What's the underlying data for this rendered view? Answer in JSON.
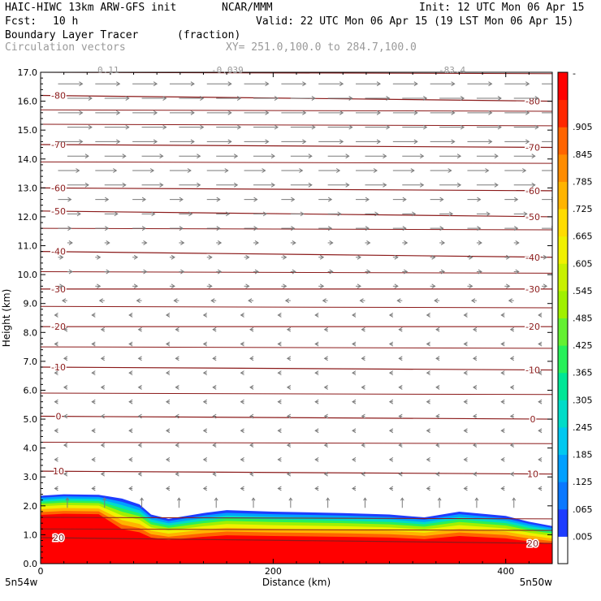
{
  "header": {
    "model": "HAIC-HIWC 13km ARW-GFS init",
    "org": "NCAR/MMM",
    "init": "Init: 12 UTC Mon 06 Apr 15",
    "fcst_label": "Fcst:",
    "fcst_value": "10 h",
    "valid": "Valid: 22 UTC Mon 06 Apr 15 (19 LST Mon 06 Apr 15)",
    "field": "Boundary Layer Tracer",
    "field_units": "(fraction)",
    "vectors": "Circulation vectors",
    "xy": "XY= 251.0,100.0 to 284.7,100.0",
    "vector_labels": [
      "0.11",
      "-0.039",
      "-83.4"
    ]
  },
  "chart_data": {
    "type": "heatmap",
    "title": "Boundary Layer Tracer",
    "xlabel": "Distance (km)",
    "ylabel": "Height (km)",
    "xlim": [
      0,
      440
    ],
    "ylim": [
      0,
      17
    ],
    "x_ticks": [
      0,
      200,
      400
    ],
    "y_ticks": [
      "0.0",
      "1.0",
      "2.0",
      "3.0",
      "4.0",
      "5.0",
      "6.0",
      "7.0",
      "8.0",
      "9.0",
      "10.0",
      "11.0",
      "12.0",
      "13.0",
      "14.0",
      "15.0",
      "16.0",
      "17.0"
    ],
    "x_endpoints": [
      "5n54w",
      "5n50w"
    ],
    "colorbar": {
      "labels": [
        ".005",
        ".065",
        ".125",
        ".185",
        ".245",
        ".305",
        ".365",
        ".425",
        ".485",
        ".545",
        ".605",
        ".665",
        ".725",
        ".785",
        ".845",
        ".905",
        "-"
      ],
      "colors": [
        "#ffffff",
        "#1e3cff",
        "#0a78ff",
        "#00a0ff",
        "#00c8f0",
        "#00dcc8",
        "#00e696",
        "#28f05a",
        "#64f032",
        "#a0f000",
        "#c8f000",
        "#f0f000",
        "#ffdc00",
        "#ffb400",
        "#ff8c00",
        "#ff6400",
        "#ff2800",
        "#ff0000"
      ]
    },
    "isotherms": [
      {
        "label": "-80",
        "y_left": 16.2,
        "y_right": 16.0
      },
      {
        "label": "-70",
        "y_left": 14.5,
        "y_right": 14.4
      },
      {
        "label": "-60",
        "y_left": 13.0,
        "y_right": 12.9
      },
      {
        "label": "-50",
        "y_left": 12.2,
        "y_right": 12.0
      },
      {
        "label": "-40",
        "y_left": 10.8,
        "y_right": 10.6
      },
      {
        "label": "-30",
        "y_left": 9.5,
        "y_right": 9.5
      },
      {
        "label": "-20",
        "y_left": 8.2,
        "y_right": 8.2
      },
      {
        "label": "-10",
        "y_left": 6.8,
        "y_right": 6.7
      },
      {
        "label": "0",
        "y_left": 5.1,
        "y_right": 5.0
      },
      {
        "label": "10",
        "y_left": 3.2,
        "y_right": 3.1
      },
      {
        "label": "20",
        "y_left": 0.9,
        "y_right": 0.7
      }
    ],
    "extra_contours": [
      17.0,
      15.7,
      15.2,
      13.9,
      11.6,
      10.1,
      8.9,
      7.5,
      5.9,
      4.2,
      1.6,
      1.2
    ]
  }
}
